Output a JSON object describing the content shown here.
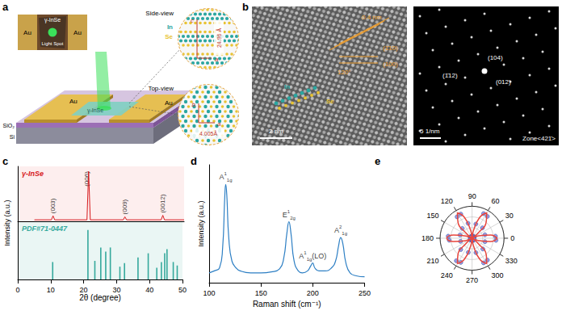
{
  "panels": {
    "a": {
      "panel_label": "a",
      "inset": {
        "material": "γ-InSe",
        "electrodes": [
          "Au",
          "Au"
        ],
        "spot": "Light Spot"
      },
      "device": {
        "electrodes": [
          "Au",
          "Au"
        ],
        "flake": "γ-InSe",
        "substrate": [
          "SiO₂",
          "Si"
        ]
      },
      "side_view": {
        "title": "Side-view",
        "atoms": [
          "In",
          "Se"
        ],
        "axes": [
          "c",
          "a"
        ],
        "lattice_c": "24.96 Å"
      },
      "top_view": {
        "title": "Top-view",
        "axes": [
          "b",
          "a"
        ],
        "lattice_a": "4.005Å"
      }
    },
    "b": {
      "panel_label": "b",
      "hrtem": {
        "atoms": [
          "In",
          "Se"
        ],
        "d_spacing": "0.4 nm",
        "angle": "120°",
        "planes": [
          "(1̄10)",
          "(100)"
        ],
        "scale_bar": "2 nm"
      },
      "saed": {
        "spots": [
          "(104)",
          "(1̄12)",
          "(012)"
        ],
        "scale_bar": "5 1/nm",
        "zone": "Zone<421̄>"
      }
    }
  },
  "chart_data": [
    {
      "panel_label": "c",
      "type": "line",
      "xlabel": "2θ (degree)",
      "ylabel": "Intensity (a.u.)",
      "xlim": [
        0,
        50
      ],
      "xticks": [
        0,
        10,
        20,
        30,
        40,
        50
      ],
      "ylim": [
        0,
        110
      ],
      "y2lim": [
        0,
        100
      ],
      "tick_labels": "x",
      "grid": false,
      "series": [
        {
          "name": "γ-InSe",
          "type": "line",
          "color": "#d7191c",
          "x": [
            5,
            10.1,
            10.6,
            11.1,
            20.8,
            21.3,
            21.8,
            31.7,
            32.2,
            32.7,
            43.1,
            43.6,
            44.1,
            50
          ],
          "values": [
            3,
            3,
            11,
            3,
            3,
            100,
            3,
            3,
            9,
            3,
            3,
            12,
            3,
            3
          ]
        },
        {
          "name": "PDF#71-0447",
          "type": "bar",
          "axis": "y2",
          "color": "#35a99c",
          "x": [
            10.6,
            21.3,
            23.4,
            25.2,
            26.7,
            28.1,
            31.0,
            32.4,
            36.5,
            39.6,
            42.2,
            43.6,
            44.6,
            45.3,
            47.2,
            48.4
          ],
          "values": [
            30,
            85,
            32,
            55,
            48,
            55,
            22,
            28,
            38,
            45,
            20,
            30,
            45,
            52,
            30,
            24
          ]
        }
      ],
      "annotations": [
        {
          "text": "(003)",
          "x": 10.6
        },
        {
          "text": "(006)",
          "x": 21.3
        },
        {
          "text": "(009)",
          "x": 32.2
        },
        {
          "text": "(0012)",
          "x": 43.6
        }
      ]
    },
    {
      "panel_label": "d",
      "type": "line",
      "xlabel": "Raman shift (cm⁻¹)",
      "ylabel": "Intensity (a.u.)",
      "xlim": [
        100,
        250
      ],
      "xticks": [
        100,
        150,
        200,
        250
      ],
      "ylim": [
        0,
        1.2
      ],
      "tick_labels": "x",
      "grid": false,
      "color": "#2d7fc4",
      "x": [
        100,
        105,
        110,
        113,
        115,
        116,
        117,
        119,
        122,
        126,
        130,
        140,
        150,
        160,
        168,
        172,
        175,
        177,
        179,
        182,
        186,
        190,
        195,
        198,
        200,
        202,
        206,
        212,
        218,
        222,
        225,
        227,
        229,
        232,
        236,
        242,
        250
      ],
      "values": [
        0.1,
        0.12,
        0.15,
        0.35,
        0.85,
        1.0,
        0.9,
        0.45,
        0.22,
        0.15,
        0.12,
        0.1,
        0.1,
        0.11,
        0.14,
        0.25,
        0.5,
        0.62,
        0.5,
        0.22,
        0.12,
        0.1,
        0.12,
        0.17,
        0.2,
        0.15,
        0.12,
        0.12,
        0.15,
        0.22,
        0.38,
        0.46,
        0.4,
        0.2,
        0.1,
        0.07,
        0.06
      ],
      "annotations": [
        {
          "text": "A",
          "sup": "1",
          "sub": "1g",
          "x": 116
        },
        {
          "text": "E",
          "sup": "1",
          "sub": "2g",
          "x": 177
        },
        {
          "text": "A",
          "sup": "1",
          "sub": "1g",
          "suffix": "(LO)",
          "x": 200
        },
        {
          "text": "A",
          "sup": "2",
          "sub": "1g",
          "x": 227
        }
      ]
    },
    {
      "panel_label": "e",
      "type": "polar",
      "xlim": [
        0,
        360
      ],
      "xticks": [
        0,
        30,
        60,
        90,
        120,
        150,
        180,
        210,
        240,
        270,
        300,
        330
      ],
      "ylim": [
        0,
        1.2
      ],
      "yticks": [
        0,
        0.4,
        0.8,
        1.2
      ],
      "tick_labels": "x",
      "grid": true,
      "series": [
        {
          "type": "scatter",
          "marker": "circle",
          "color": "#7b8ae6",
          "x": [
            5,
            15,
            25,
            35,
            45,
            55,
            65,
            75,
            85,
            95,
            105,
            115,
            125,
            135,
            145,
            155,
            165,
            175,
            185,
            195,
            205,
            215,
            225,
            235,
            245,
            255,
            265,
            275,
            285,
            295,
            305,
            315,
            325,
            335,
            345,
            355
          ],
          "values": [
            0.88,
            0.5,
            0.08,
            0.1,
            0.55,
            1.0,
            1.02,
            0.55,
            0.1,
            0.09,
            0.58,
            1.0,
            0.98,
            0.52,
            0.08,
            0.07,
            0.47,
            0.9,
            0.86,
            0.45,
            0.06,
            0.1,
            0.6,
            1.03,
            1.0,
            0.55,
            0.09,
            0.1,
            0.56,
            1.02,
            1.0,
            0.57,
            0.1,
            0.07,
            0.5,
            0.9
          ]
        },
        {
          "type": "line",
          "color": "#e8453c",
          "x": [
            0,
            10,
            20,
            30,
            40,
            50,
            60,
            70,
            80,
            90,
            100,
            110,
            120,
            130,
            140,
            150,
            160,
            170,
            180,
            190,
            200,
            210,
            220,
            230,
            240,
            250,
            260,
            270,
            280,
            290,
            300,
            310,
            320,
            330,
            340,
            350,
            360
          ],
          "values": [
            0.95,
            0.71,
            0.26,
            0,
            0.28,
            0.83,
            1.1,
            0.83,
            0.28,
            0,
            0.28,
            0.83,
            1.1,
            0.83,
            0.28,
            0,
            0.24,
            0.71,
            0.95,
            0.71,
            0.26,
            0,
            0.28,
            0.83,
            1.1,
            0.83,
            0.28,
            0,
            0.28,
            0.83,
            1.1,
            0.83,
            0.28,
            0,
            0.24,
            0.71,
            0.95
          ]
        }
      ]
    }
  ]
}
